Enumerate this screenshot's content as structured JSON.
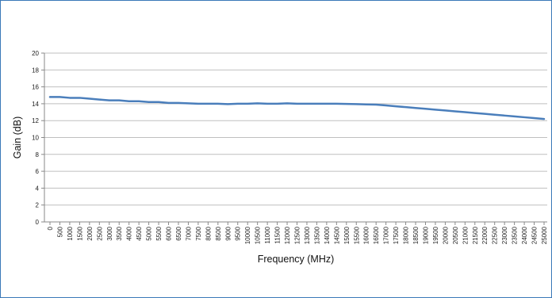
{
  "chart_data": {
    "type": "line",
    "title": "",
    "xlabel": "Frequency (MHz)",
    "ylabel": "Gain (dB)",
    "ylim": [
      0,
      20
    ],
    "yticks": [
      0,
      2,
      4,
      6,
      8,
      10,
      12,
      14,
      16,
      18,
      20
    ],
    "xlim": [
      0,
      25000
    ],
    "xtick_step": 500,
    "grid": "horizontal",
    "legend": "none",
    "series_color": "#4a7ebb",
    "x": [
      0,
      500,
      1000,
      1500,
      2000,
      2500,
      3000,
      3500,
      4000,
      4500,
      5000,
      5500,
      6000,
      6500,
      7000,
      7500,
      8000,
      8500,
      9000,
      9500,
      10000,
      10500,
      11000,
      11500,
      12000,
      12500,
      13000,
      13500,
      14000,
      14500,
      15000,
      15500,
      16000,
      16500,
      17000,
      17500,
      18000,
      18500,
      19000,
      19500,
      20000,
      20500,
      21000,
      21500,
      22000,
      22500,
      23000,
      23500,
      24000,
      24500,
      25000
    ],
    "series": [
      {
        "values": [
          14.8,
          14.8,
          14.7,
          14.7,
          14.6,
          14.5,
          14.4,
          14.4,
          14.3,
          14.3,
          14.2,
          14.2,
          14.1,
          14.1,
          14.05,
          14.0,
          14.0,
          14.0,
          13.95,
          14.0,
          14.0,
          14.05,
          14.0,
          14.0,
          14.05,
          14.0,
          14.0,
          14.0,
          14.0,
          14.0,
          13.98,
          13.95,
          13.92,
          13.9,
          13.8,
          13.7,
          13.6,
          13.5,
          13.4,
          13.3,
          13.2,
          13.1,
          13.0,
          12.9,
          12.8,
          12.7,
          12.6,
          12.5,
          12.4,
          12.3,
          12.2
        ]
      }
    ]
  }
}
